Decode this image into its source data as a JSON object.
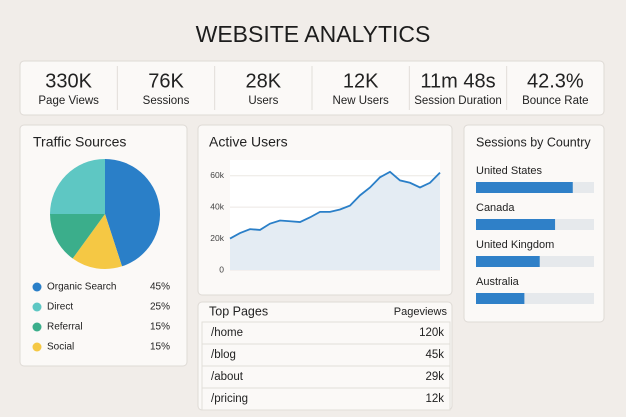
{
  "header": {
    "title": "WEBSITE ANALYTICS"
  },
  "kpis": [
    {
      "value": "330K",
      "label": "Page Views"
    },
    {
      "value": "76K",
      "label": "Sessions"
    },
    {
      "value": "28K",
      "label": "Users"
    },
    {
      "value": "12K",
      "label": "New Users"
    },
    {
      "value": "11m 48s",
      "label": "Session Duration"
    },
    {
      "value": "42.3%",
      "label": "Bounce Rate"
    }
  ],
  "chart_data": [
    {
      "type": "pie",
      "title": "Traffic Sources",
      "categories": [
        "Organic Search",
        "Direct",
        "Referral",
        "Social"
      ],
      "values": [
        45,
        25,
        15,
        15
      ],
      "value_labels": [
        "45%",
        "25%",
        "15%",
        "15%"
      ],
      "colors": [
        "#2a7fc8",
        "#5ec7c3",
        "#3bae8b",
        "#f5c844"
      ]
    },
    {
      "type": "line",
      "title": "Active Users",
      "values": [
        20000,
        23500,
        26000,
        25500,
        29500,
        31500,
        31000,
        30500,
        33500,
        37000,
        37000,
        38500,
        41000,
        47500,
        52500,
        59000,
        62500,
        57000,
        55500,
        52500,
        55500,
        62000
      ],
      "color": "#2a7fc8",
      "ylim": [
        0,
        70000
      ],
      "yticks": [
        0,
        {
          "value": 20000,
          "label": "20k"
        },
        {
          "value": 40000,
          "label": "40k"
        },
        {
          "value": 60000,
          "label": "60k"
        }
      ],
      "grid": true
    },
    {
      "type": "hbar",
      "title": "Sessions by Country",
      "categories": [
        "United States",
        "Canada",
        "United Kingdom",
        "Australia"
      ],
      "values": [
        82,
        67,
        54,
        41
      ],
      "xlim": [
        0,
        100
      ],
      "color": "#2f80c8"
    }
  ],
  "top_pages": {
    "title": "Top Pages",
    "column": "Pageviews",
    "rows": [
      [
        "/home",
        "120k"
      ],
      [
        "/blog",
        "45k"
      ],
      [
        "/about",
        "29k"
      ],
      [
        "/pricing",
        "12k"
      ]
    ]
  }
}
